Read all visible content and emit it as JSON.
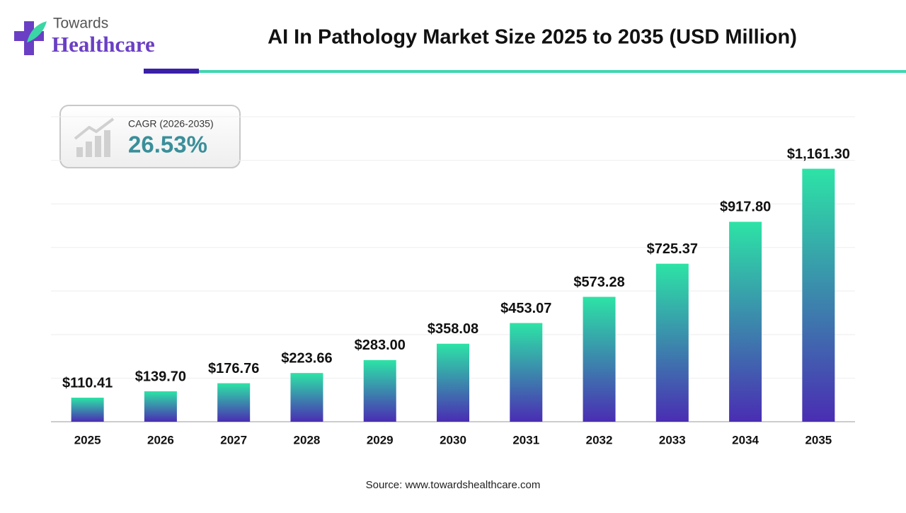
{
  "logo": {
    "line1": "Towards",
    "line2": "Healthcare"
  },
  "chart_data": {
    "type": "bar",
    "title": "AI In Pathology Market Size 2025 to 2035 (USD Million)",
    "cagr_label": "CAGR (2026-2035)",
    "cagr_value": "26.53%",
    "source": "Source: www.towardshealthcare.com",
    "categories": [
      "2025",
      "2026",
      "2027",
      "2028",
      "2029",
      "2030",
      "2031",
      "2032",
      "2033",
      "2034",
      "2035"
    ],
    "values": [
      110.41,
      139.7,
      176.76,
      223.66,
      283.0,
      358.08,
      453.07,
      573.28,
      725.37,
      917.8,
      1161.3
    ],
    "value_labels": [
      "$110.41",
      "$139.70",
      "$176.76",
      "$223.66",
      "$283.00",
      "$358.08",
      "$453.07",
      "$573.28",
      "$725.37",
      "$917.80",
      "$1,161.30"
    ],
    "color": [
      "#2de3a6",
      "#4a2db3"
    ],
    "ylim": [
      0,
      1400
    ],
    "yticks": [
      0,
      200,
      400,
      600,
      800,
      1000,
      1200,
      1400
    ],
    "grid": true
  }
}
